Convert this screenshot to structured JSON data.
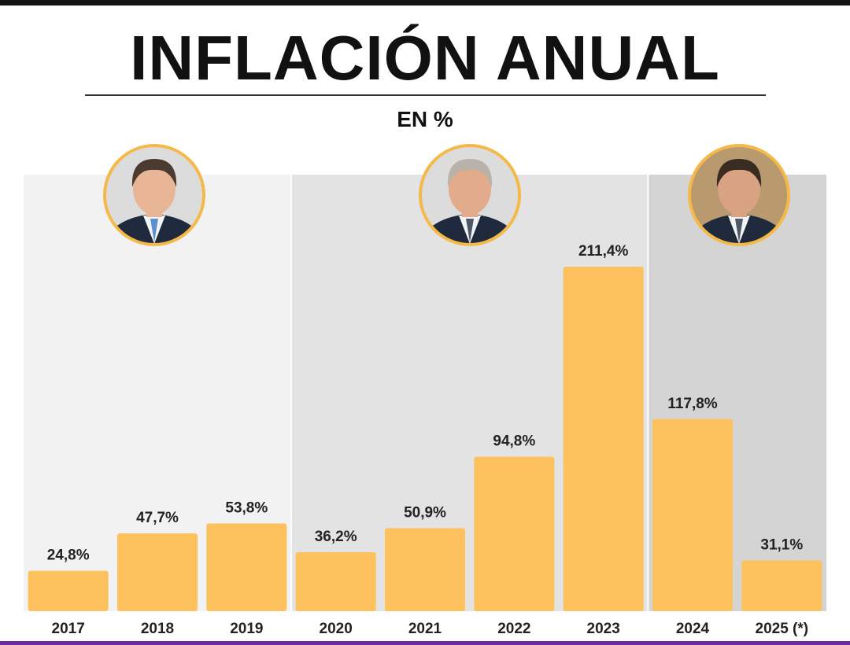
{
  "header": {
    "title": "INFLACIÓN ANUAL",
    "subtitle": "EN %"
  },
  "colors": {
    "bar": "#fdc15d",
    "period_1_bg": "#f2f2f2",
    "period_2_bg": "#e3e3e3",
    "period_3_bg": "#d4d4d4",
    "portrait_ring": "#f5b94a"
  },
  "chart_data": {
    "type": "bar",
    "title": "INFLACIÓN ANUAL",
    "subtitle": "EN %",
    "categories": [
      "2017",
      "2018",
      "2019",
      "2020",
      "2021",
      "2022",
      "2023",
      "2024",
      "2025 (*)"
    ],
    "values": [
      24.8,
      47.7,
      53.8,
      36.2,
      50.9,
      94.8,
      211.4,
      117.8,
      31.1
    ],
    "value_labels": [
      "24,8%",
      "47,7%",
      "53,8%",
      "36,2%",
      "50,9%",
      "94,8%",
      "211,4%",
      "117,8%",
      "31,1%"
    ],
    "xlabel": "",
    "ylabel": "",
    "ylim": [
      0,
      230
    ],
    "grid": false,
    "legend": "none",
    "periods": [
      {
        "start": 0,
        "end": 2,
        "icon": "portrait-icon"
      },
      {
        "start": 3,
        "end": 6,
        "icon": "portrait-icon"
      },
      {
        "start": 7,
        "end": 8,
        "icon": "portrait-icon"
      }
    ]
  }
}
